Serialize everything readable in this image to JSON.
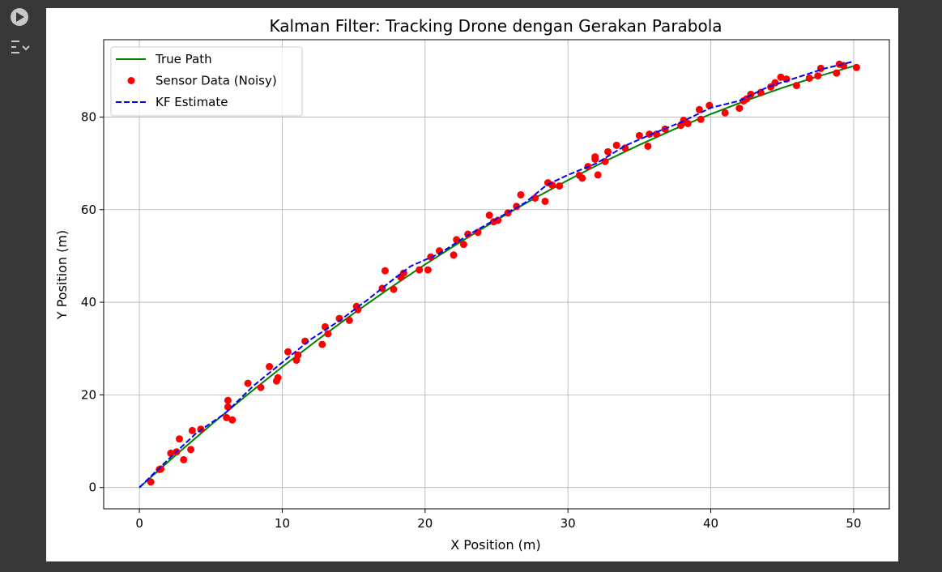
{
  "chart_data": {
    "type": "line",
    "title": "Kalman Filter: Tracking Drone dengan Gerakan Parabola",
    "x_label": "X Position (m)",
    "y_label": "Y Position (m)",
    "xlim": [
      -2.5,
      52.5
    ],
    "ylim": [
      -4.6,
      96.7
    ],
    "xticks": [
      0,
      10,
      20,
      30,
      40,
      50
    ],
    "yticks": [
      0,
      20,
      40,
      60,
      80
    ],
    "grid": true,
    "legend": "upper-left",
    "series": [
      {
        "name": "True Path",
        "type": "line",
        "color": "#008000",
        "x": [
          0,
          2.5,
          5,
          7.5,
          10,
          12.5,
          15,
          17.5,
          20,
          22.5,
          25,
          27.5,
          30,
          32.5,
          35,
          37.5,
          40,
          42.5,
          45,
          47.5,
          50
        ],
        "values": [
          0,
          6.88,
          13.51,
          19.9,
          26.04,
          31.94,
          37.59,
          43.0,
          48.16,
          53.08,
          57.75,
          62.18,
          66.36,
          70.3,
          73.99,
          77.44,
          80.64,
          83.6,
          86.31,
          88.78,
          91.0
        ]
      },
      {
        "name": "Sensor Data (Noisy)",
        "type": "scatter",
        "color": "#ff0000",
        "x": [
          0.8,
          1.4,
          1.5,
          2.2,
          2.6,
          2.8,
          3.1,
          3.6,
          3.7,
          4.3,
          6.1,
          6.2,
          6.2,
          6.5,
          7.6,
          8.5,
          9.1,
          9.6,
          9.7,
          10.4,
          11.0,
          11.1,
          11.6,
          12.8,
          13.0,
          13.2,
          14.0,
          14.7,
          15.2,
          15.3,
          17.0,
          17.2,
          17.8,
          18.3,
          18.5,
          19.6,
          20.2,
          20.4,
          21.0,
          22.0,
          22.2,
          22.7,
          23.0,
          23.7,
          24.5,
          24.8,
          25.1,
          25.8,
          26.4,
          26.7,
          27.7,
          28.4,
          28.6,
          28.9,
          29.4,
          30.8,
          31.0,
          31.4,
          31.9,
          31.9,
          32.1,
          32.6,
          32.8,
          33.4,
          34.0,
          35.0,
          35.6,
          35.7,
          36.2,
          36.8,
          37.9,
          38.1,
          38.4,
          39.2,
          39.3,
          39.9,
          41.0,
          42.0,
          42.3,
          42.5,
          42.8,
          43.5,
          44.2,
          44.5,
          44.9,
          45.3,
          46.0,
          46.9,
          47.5,
          47.7,
          48.8,
          49.0,
          49.3,
          50.2
        ],
        "values": [
          1.2,
          3.9,
          4.0,
          7.4,
          7.7,
          10.5,
          6.0,
          8.2,
          12.3,
          12.6,
          15.1,
          18.8,
          17.4,
          14.6,
          22.5,
          21.6,
          26.1,
          23.0,
          23.7,
          29.3,
          27.5,
          28.6,
          31.6,
          30.9,
          34.7,
          33.2,
          36.5,
          36.1,
          39.1,
          38.4,
          43.0,
          46.8,
          42.8,
          45.4,
          46.3,
          47.0,
          47.0,
          49.8,
          51.1,
          50.2,
          53.5,
          52.5,
          54.7,
          55.1,
          58.8,
          57.4,
          57.7,
          59.3,
          60.7,
          63.2,
          62.5,
          61.8,
          65.8,
          65.3,
          65.1,
          67.4,
          66.8,
          69.3,
          71.4,
          70.9,
          67.5,
          70.4,
          72.5,
          73.9,
          73.3,
          76.0,
          73.7,
          76.3,
          76.3,
          77.4,
          78.2,
          79.3,
          78.6,
          81.6,
          79.5,
          82.5,
          80.9,
          81.9,
          83.5,
          83.9,
          84.9,
          85.3,
          86.5,
          87.4,
          88.6,
          88.2,
          86.8,
          88.4,
          88.9,
          90.5,
          89.5,
          91.4,
          91.1,
          90.7
        ]
      },
      {
        "name": "KF Estimate",
        "type": "line",
        "dashed": true,
        "color": "#0000ff",
        "x": [
          0,
          2,
          4,
          6,
          8,
          10,
          12,
          14,
          16,
          18,
          19,
          21,
          23,
          25,
          27,
          28.5,
          30,
          32,
          34,
          36,
          38,
          40,
          42,
          44,
          46,
          48,
          50
        ],
        "values": [
          0,
          6.0,
          11.8,
          16.0,
          22.0,
          27.0,
          32.0,
          36.0,
          40.6,
          45.5,
          47.8,
          50.5,
          54.5,
          58.0,
          61.5,
          65.3,
          67.5,
          70.0,
          73.8,
          76.5,
          79.0,
          82.0,
          83.5,
          86.5,
          88.5,
          90.5,
          92.0
        ]
      }
    ]
  }
}
